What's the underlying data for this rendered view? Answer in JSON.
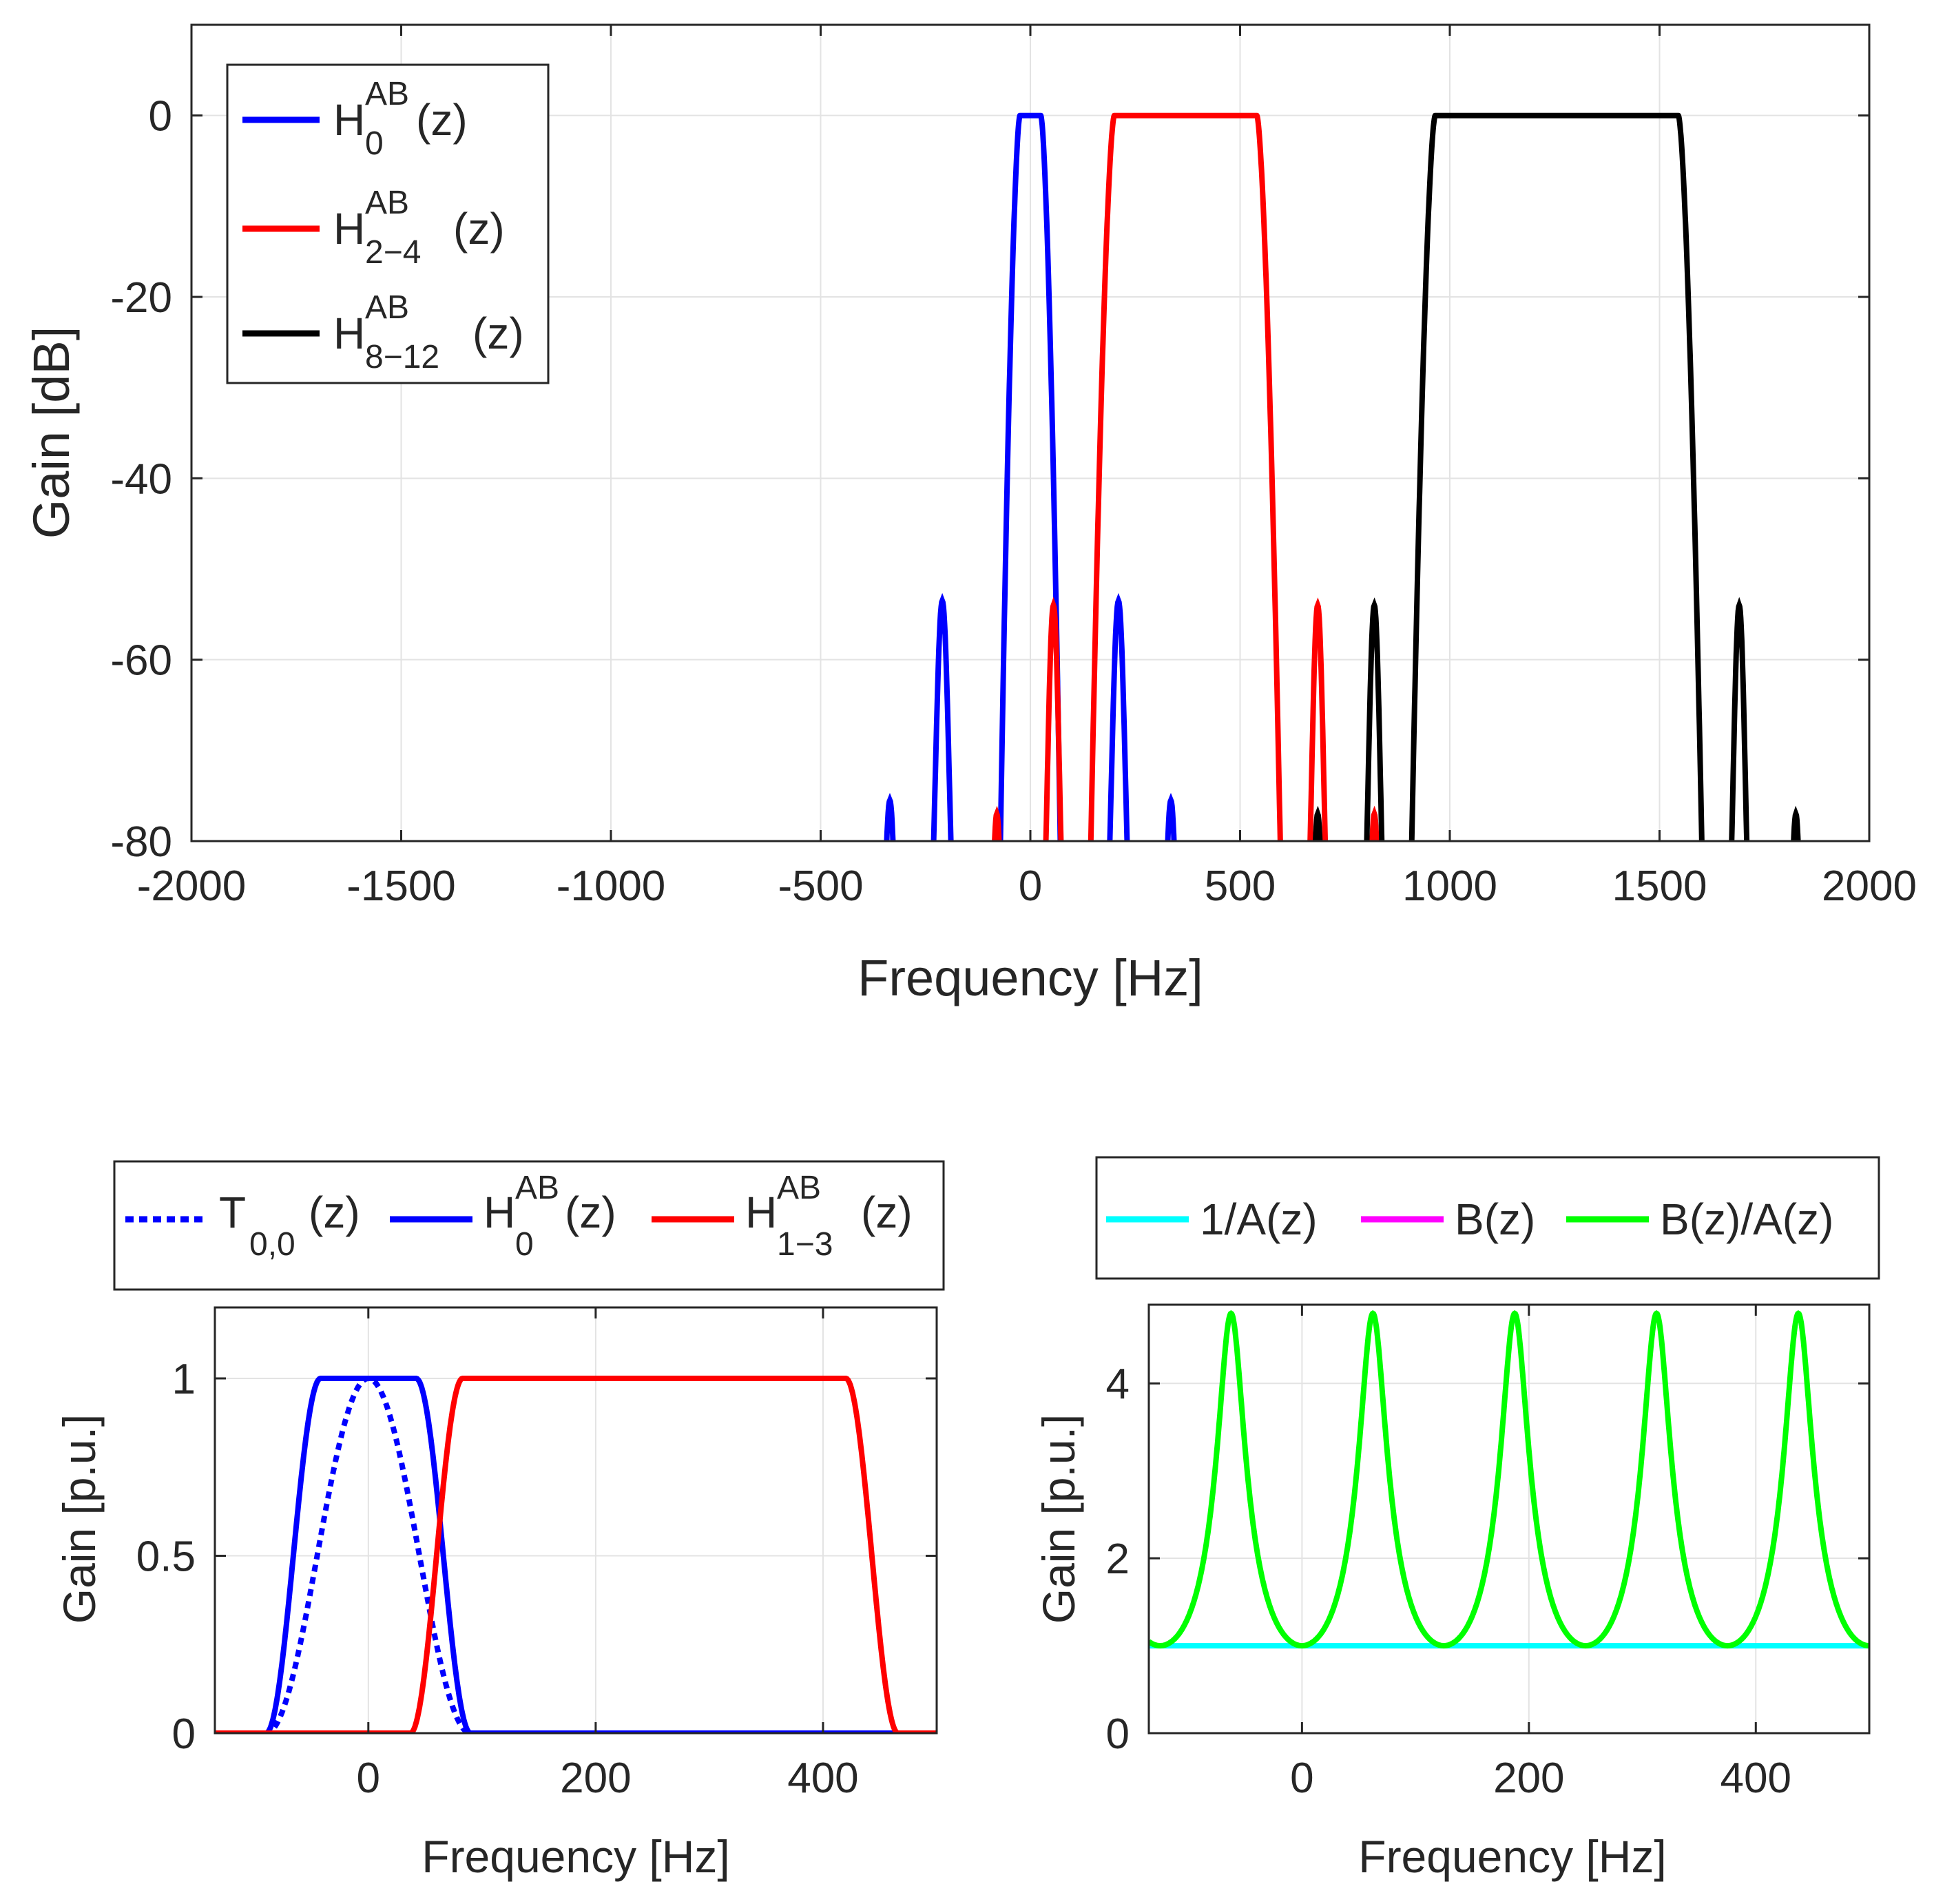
{
  "chart_data": [
    {
      "id": "top",
      "type": "line",
      "xlabel": "Frequency [Hz]",
      "ylabel": "Gain [dB]",
      "xlim": [
        -2000,
        2000
      ],
      "ylim": [
        -80,
        10
      ],
      "xticks": [
        -2000,
        -1500,
        -1000,
        -500,
        0,
        500,
        1000,
        1500,
        2000
      ],
      "xtick_labels": [
        "-2000",
        "-1500",
        "-1000",
        "-500",
        "0",
        "500",
        "1000",
        "1500",
        "2000"
      ],
      "yticks": [
        -80,
        -60,
        -40,
        -20,
        0
      ],
      "ytick_labels": [
        "-80",
        "-60",
        "-40",
        "-20",
        "0"
      ],
      "grid": true,
      "legend_position": "top-left",
      "series": [
        {
          "name": "H0AB(z)",
          "label_main": "H",
          "label_sup": "AB",
          "label_sub": "0",
          "label_tail": "(z)",
          "color": "#0000ff",
          "style": "solid",
          "passband": [
            -25,
            25
          ],
          "transition": 50,
          "sidelobe_offsets": [
            185,
            310
          ],
          "sidelobe_levels": [
            -53.5,
            -75.5
          ],
          "sidelobe_width": 34
        },
        {
          "name": "H2-4AB(z)",
          "label_main": "H",
          "label_sup": "AB",
          "label_sub": "2−4",
          "label_tail": "(z)",
          "color": "#ff0000",
          "style": "solid",
          "passband": [
            200,
            540
          ],
          "transition": 60,
          "sidelobe_offsets": [
            145,
            280
          ],
          "sidelobe_levels": [
            -54,
            -77
          ],
          "sidelobe_width": 30
        },
        {
          "name": "H8-12AB(z)",
          "label_main": "H",
          "label_sup": "AB",
          "label_sub": "8−12",
          "label_tail": "(z)",
          "color": "#000000",
          "style": "solid",
          "passband": [
            965,
            1545
          ],
          "transition": 60,
          "sidelobe_offsets": [
            145,
            280
          ],
          "sidelobe_levels": [
            -54,
            -77
          ],
          "sidelobe_width": 30
        }
      ]
    },
    {
      "id": "bottom-left",
      "type": "line",
      "xlabel": "Frequency [Hz]",
      "ylabel": "Gain [p.u.]",
      "xlim": [
        -135,
        500
      ],
      "ylim": [
        0,
        1.2
      ],
      "xticks": [
        0,
        200,
        400
      ],
      "xtick_labels": [
        "0",
        "200",
        "400"
      ],
      "yticks": [
        0,
        0.5,
        1
      ],
      "ytick_labels": [
        "0",
        "0.5",
        "1"
      ],
      "grid": true,
      "legend_position": "outside-top",
      "series": [
        {
          "name": "T0,0(z)",
          "label_main": "T",
          "label_sup": "",
          "label_sub": "0,0",
          "label_tail": "(z)",
          "color": "#0000ff",
          "style": "dotted",
          "kind": "triangle",
          "center": 0,
          "half_width": 90,
          "peak": 1
        },
        {
          "name": "H0AB(z)",
          "label_main": "H",
          "label_sup": "AB",
          "label_sub": "0",
          "label_tail": "(z)",
          "color": "#0000ff",
          "style": "solid",
          "kind": "band",
          "passband": [
            -42,
            42
          ],
          "transition": 48
        },
        {
          "name": "H1-3AB(z)",
          "label_main": "H",
          "label_sup": "AB",
          "label_sub": "1−3",
          "label_tail": "(z)",
          "color": "#ff0000",
          "style": "solid",
          "kind": "band",
          "passband": [
            83,
            420
          ],
          "transition": 46
        }
      ]
    },
    {
      "id": "bottom-right",
      "type": "line",
      "xlabel": "Frequency [Hz]",
      "ylabel": "Gain [p.u.]",
      "xlim": [
        -135,
        500
      ],
      "ylim": [
        0,
        4.9
      ],
      "xticks": [
        0,
        200,
        400
      ],
      "xtick_labels": [
        "0",
        "200",
        "400"
      ],
      "yticks": [
        0,
        2,
        4
      ],
      "ytick_labels": [
        "0",
        "2",
        "4"
      ],
      "grid": true,
      "legend_position": "outside-top",
      "series": [
        {
          "name": "1/A(z)",
          "label_main": "1/A(z)",
          "color": "#00ffff",
          "style": "solid",
          "kind": "constant",
          "value": 1
        },
        {
          "name": "B(z)",
          "label_main": "B(z)",
          "color": "#ff00ff",
          "style": "solid",
          "kind": "hidden"
        },
        {
          "name": "B(z)/A(z)",
          "label_main": "B(z)/A(z)",
          "color": "#00ff00",
          "style": "solid",
          "kind": "periodic",
          "period": 125,
          "min_value": 1,
          "max_value": 4.8,
          "peaks": [
            -62.5,
            62.5,
            187.5,
            312.5,
            437.5
          ]
        }
      ]
    }
  ]
}
